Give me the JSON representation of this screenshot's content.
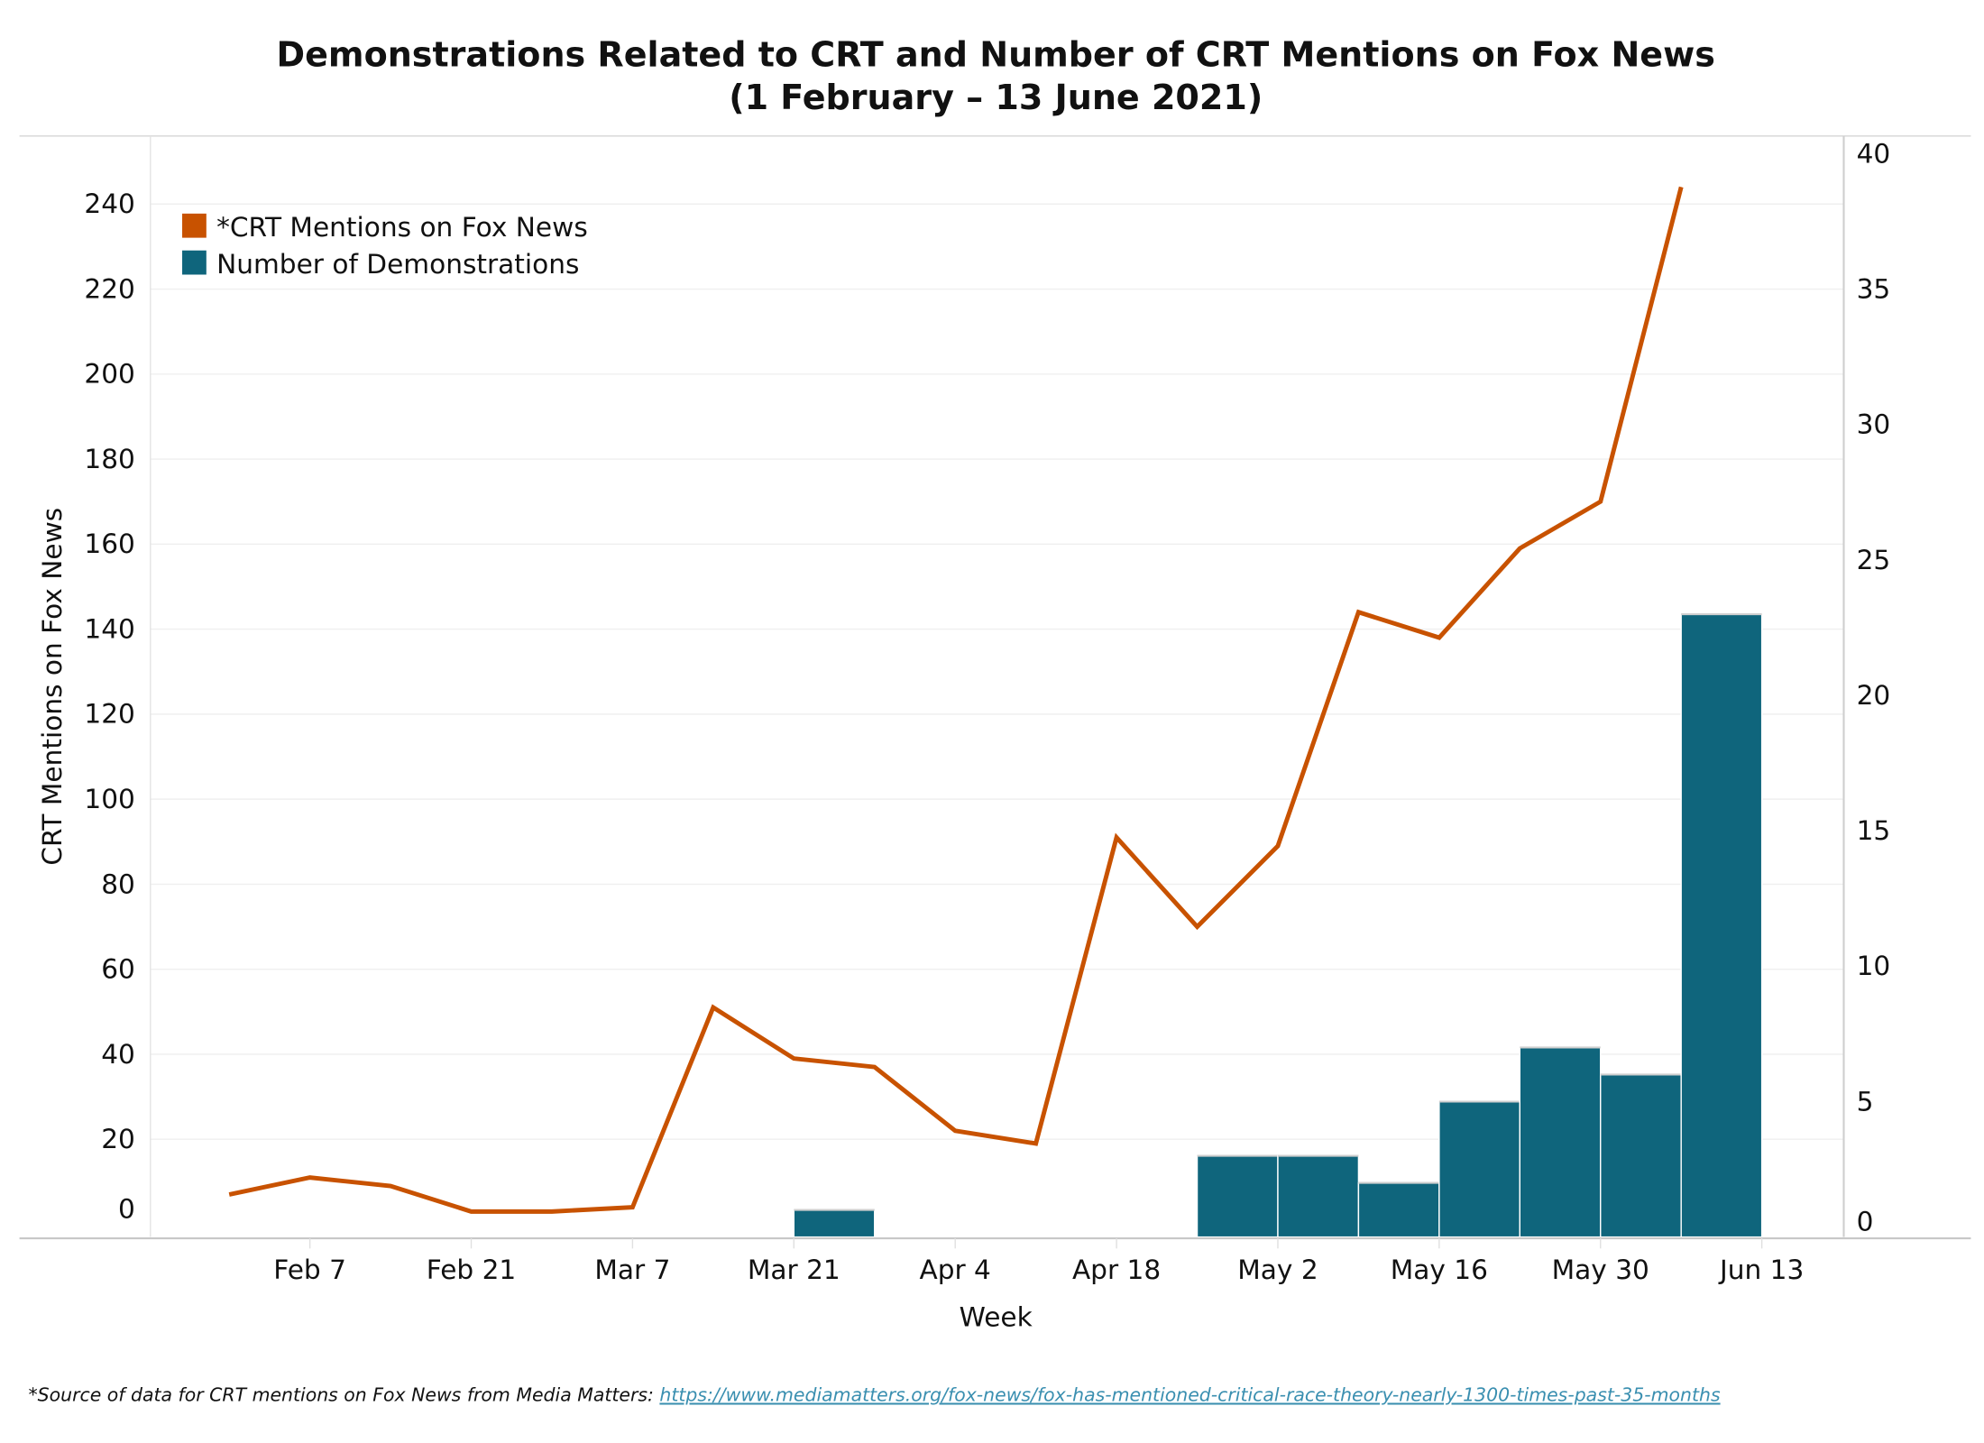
{
  "chart_data": {
    "type": "bar+line",
    "title": "Demonstrations Related to CRT and Number of CRT Mentions on Fox News",
    "subtitle": "(1 February – 13 June 2021)",
    "xlabel": "Week",
    "ylabel_left": "CRT Mentions on Fox News",
    "ylabel_right": "Number of Demonstrations",
    "ylim_left": [
      -3,
      256
    ],
    "ylim_right": [
      -0.5,
      40.6
    ],
    "yticks_left": [
      0,
      20,
      40,
      60,
      80,
      100,
      120,
      140,
      160,
      180,
      200,
      220,
      240
    ],
    "yticks_right": [
      0,
      5,
      10,
      15,
      20,
      25,
      30,
      35,
      40
    ],
    "x_tick_labels": [
      {
        "week_index": 1,
        "label": "Feb 7"
      },
      {
        "week_index": 3,
        "label": "Feb 21"
      },
      {
        "week_index": 5,
        "label": "Mar 7"
      },
      {
        "week_index": 7,
        "label": "Mar 21"
      },
      {
        "week_index": 9,
        "label": "Apr 4"
      },
      {
        "week_index": 11,
        "label": "Apr 18"
      },
      {
        "week_index": 13,
        "label": "May 2"
      },
      {
        "week_index": 15,
        "label": "May 16"
      },
      {
        "week_index": 17,
        "label": "May 30"
      },
      {
        "week_index": 19,
        "label": "Jun 13"
      }
    ],
    "grid": true,
    "legend_position": "top-left",
    "series": [
      {
        "name": "*CRT Mentions on Fox News",
        "type": "line",
        "axis": "left",
        "color": "#c85200",
        "week_index": [
          0,
          1,
          2,
          3,
          4,
          5,
          6,
          7,
          8,
          9,
          10,
          11,
          12,
          13,
          14,
          15,
          16,
          17,
          18
        ],
        "values": [
          7,
          11,
          9,
          3,
          3,
          4,
          51,
          39,
          37,
          22,
          19,
          91,
          70,
          89,
          144,
          138,
          159,
          170,
          244
        ]
      },
      {
        "name": "Number of Demonstrations",
        "type": "bar",
        "axis": "right",
        "color": "#0f657c",
        "week_index": [
          7.5,
          12.5,
          13.5,
          14.5,
          15.5,
          16.5,
          17.5,
          18.5
        ],
        "values": [
          1,
          3,
          3,
          2,
          5,
          7,
          6,
          23
        ]
      }
    ]
  },
  "footnote": {
    "text": "*Source of data for CRT mentions on Fox News from Media Matters: ",
    "link": "https://www.mediamatters.org/fox-news/fox-has-mentioned-critical-race-theory-nearly-1300-times-past-35-months"
  }
}
